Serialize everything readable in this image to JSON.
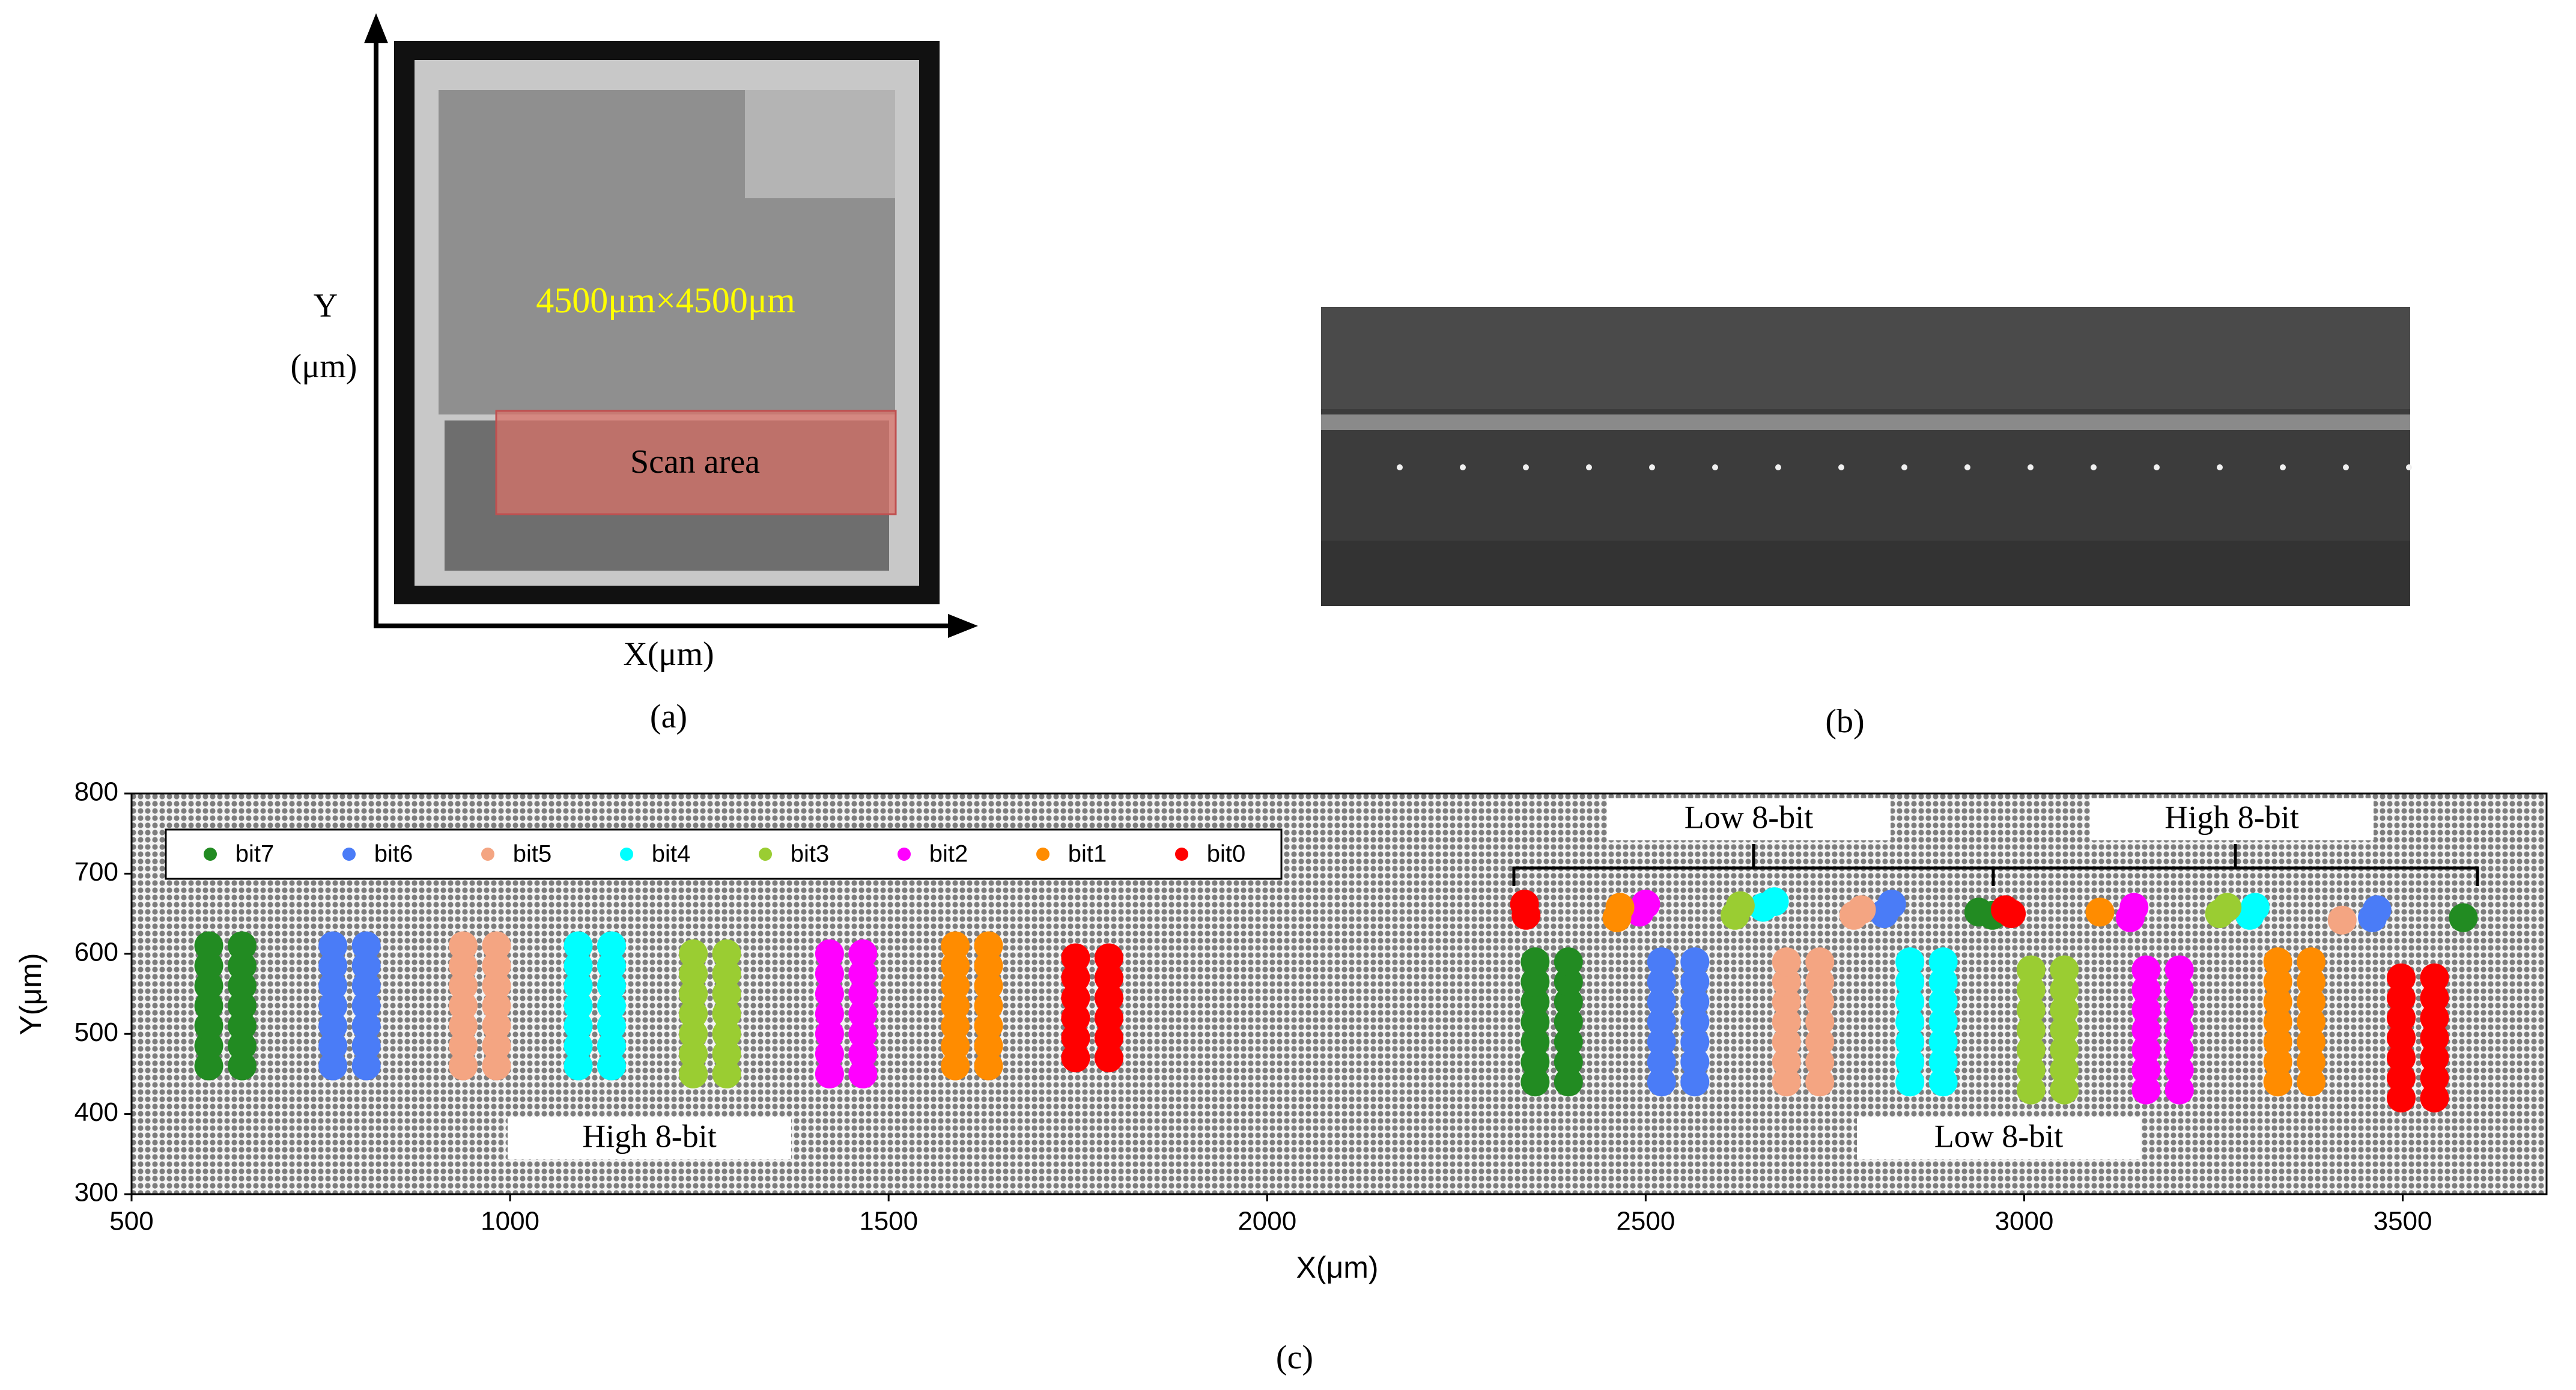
{
  "panel_a": {
    "y_label": "Y",
    "y_unit": "(μm)",
    "x_label": "X(μm)",
    "die_size": "4500μm×4500μm",
    "scan_label": "Scan area",
    "caption": "(a)"
  },
  "panel_b": {
    "caption": "(b)"
  },
  "chart_data": {
    "type": "scatter",
    "caption": "(c)",
    "xlabel": "X(μm)",
    "ylabel": "Y(μm)",
    "xlim": [
      500,
      3690
    ],
    "ylim": [
      300,
      800
    ],
    "xticks": [
      500,
      1000,
      1500,
      2000,
      2500,
      3000,
      3500
    ],
    "yticks": [
      300,
      400,
      500,
      600,
      700,
      800
    ],
    "annotations": [
      "Low 8-bit",
      "High 8-bit",
      "High 8-bit",
      "Low 8-bit"
    ],
    "series": [
      {
        "name": "bit7",
        "color": "#228b22",
        "x": [
          602,
          602,
          602,
          602,
          602,
          602,
          602,
          646,
          646,
          646,
          646,
          646,
          646,
          646,
          2354,
          2354,
          2354,
          2354,
          2354,
          2354,
          2354,
          2398,
          2398,
          2398,
          2398,
          2398,
          2398,
          2398,
          2940,
          2958,
          3580
        ],
        "y": [
          460,
          485,
          510,
          535,
          560,
          585,
          610,
          460,
          485,
          510,
          535,
          560,
          585,
          610,
          440,
          465,
          490,
          515,
          540,
          565,
          590,
          440,
          465,
          490,
          515,
          540,
          565,
          590,
          652,
          648,
          645
        ]
      },
      {
        "name": "bit6",
        "color": "#4a7cf7",
        "x": [
          766,
          766,
          766,
          766,
          766,
          766,
          766,
          810,
          810,
          810,
          810,
          810,
          810,
          810,
          2521,
          2521,
          2521,
          2521,
          2521,
          2521,
          2521,
          2565,
          2565,
          2565,
          2565,
          2565,
          2565,
          2565,
          2815,
          2825,
          3460,
          3466
        ],
        "y": [
          460,
          485,
          510,
          535,
          560,
          585,
          610,
          460,
          485,
          510,
          535,
          560,
          585,
          610,
          440,
          465,
          490,
          515,
          540,
          565,
          590,
          440,
          465,
          490,
          515,
          540,
          565,
          590,
          650,
          662,
          645,
          655
        ]
      },
      {
        "name": "bit5",
        "color": "#f4a582",
        "x": [
          938,
          938,
          938,
          938,
          938,
          938,
          938,
          982,
          982,
          982,
          982,
          982,
          982,
          982,
          2686,
          2686,
          2686,
          2686,
          2686,
          2686,
          2686,
          2730,
          2730,
          2730,
          2730,
          2730,
          2730,
          2730,
          2775,
          2785,
          3420
        ],
        "y": [
          460,
          485,
          510,
          535,
          560,
          585,
          610,
          460,
          485,
          510,
          535,
          560,
          585,
          610,
          440,
          465,
          490,
          515,
          540,
          565,
          590,
          440,
          465,
          490,
          515,
          540,
          565,
          590,
          648,
          655,
          642
        ]
      },
      {
        "name": "bit4",
        "color": "#00ffff",
        "x": [
          1090,
          1090,
          1090,
          1090,
          1090,
          1090,
          1090,
          1134,
          1134,
          1134,
          1134,
          1134,
          1134,
          1134,
          2849,
          2849,
          2849,
          2849,
          2849,
          2849,
          2849,
          2893,
          2893,
          2893,
          2893,
          2893,
          2893,
          2893,
          2655,
          2670,
          3298,
          3305
        ],
        "y": [
          460,
          485,
          510,
          535,
          560,
          585,
          610,
          460,
          485,
          510,
          535,
          560,
          585,
          610,
          440,
          465,
          490,
          515,
          540,
          565,
          590,
          440,
          465,
          490,
          515,
          540,
          565,
          590,
          658,
          665,
          648,
          658
        ]
      },
      {
        "name": "bit3",
        "color": "#9acd32",
        "x": [
          1242,
          1242,
          1242,
          1242,
          1242,
          1242,
          1242,
          1286,
          1286,
          1286,
          1286,
          1286,
          1286,
          1286,
          3009,
          3009,
          3009,
          3009,
          3009,
          3009,
          3009,
          3053,
          3053,
          3053,
          3053,
          3053,
          3053,
          3053,
          2618,
          2625,
          3258,
          3268
        ],
        "y": [
          450,
          475,
          500,
          525,
          550,
          575,
          600,
          450,
          475,
          500,
          525,
          550,
          575,
          600,
          430,
          455,
          480,
          505,
          530,
          555,
          580,
          430,
          455,
          480,
          505,
          530,
          555,
          580,
          648,
          660,
          650,
          658
        ]
      },
      {
        "name": "bit2",
        "color": "#ff00ff",
        "x": [
          1422,
          1422,
          1422,
          1422,
          1422,
          1422,
          1422,
          1466,
          1466,
          1466,
          1466,
          1466,
          1466,
          1466,
          3161,
          3161,
          3161,
          3161,
          3161,
          3161,
          3161,
          3205,
          3205,
          3205,
          3205,
          3205,
          3205,
          3205,
          2492,
          2500,
          3140,
          3145
        ],
        "y": [
          450,
          475,
          500,
          525,
          550,
          575,
          600,
          450,
          475,
          500,
          525,
          550,
          575,
          600,
          430,
          455,
          480,
          505,
          530,
          555,
          580,
          430,
          455,
          480,
          505,
          530,
          555,
          580,
          652,
          662,
          645,
          658
        ]
      },
      {
        "name": "bit1",
        "color": "#ff8c00",
        "x": [
          1588,
          1588,
          1588,
          1588,
          1588,
          1588,
          1588,
          1632,
          1632,
          1632,
          1632,
          1632,
          1632,
          1632,
          3335,
          3335,
          3335,
          3335,
          3335,
          3335,
          3335,
          3379,
          3379,
          3379,
          3379,
          3379,
          3379,
          3379,
          2462,
          2466,
          3100
        ],
        "y": [
          460,
          485,
          510,
          535,
          560,
          585,
          610,
          460,
          485,
          510,
          535,
          560,
          585,
          610,
          440,
          465,
          490,
          515,
          540,
          565,
          590,
          440,
          465,
          490,
          515,
          540,
          565,
          590,
          645,
          658,
          652
        ]
      },
      {
        "name": "bit0",
        "color": "#ff0000",
        "x": [
          1747,
          1747,
          1747,
          1747,
          1747,
          1747,
          1791,
          1791,
          1791,
          1791,
          1791,
          1791,
          3498,
          3498,
          3498,
          3498,
          3498,
          3498,
          3498,
          3542,
          3542,
          3542,
          3542,
          3542,
          3542,
          3542,
          2340,
          2342,
          2975,
          2983
        ],
        "y": [
          470,
          495,
          520,
          545,
          570,
          595,
          470,
          495,
          520,
          545,
          570,
          595,
          420,
          445,
          470,
          495,
          520,
          545,
          570,
          420,
          445,
          470,
          495,
          520,
          545,
          570,
          662,
          648,
          655,
          650
        ]
      }
    ]
  }
}
